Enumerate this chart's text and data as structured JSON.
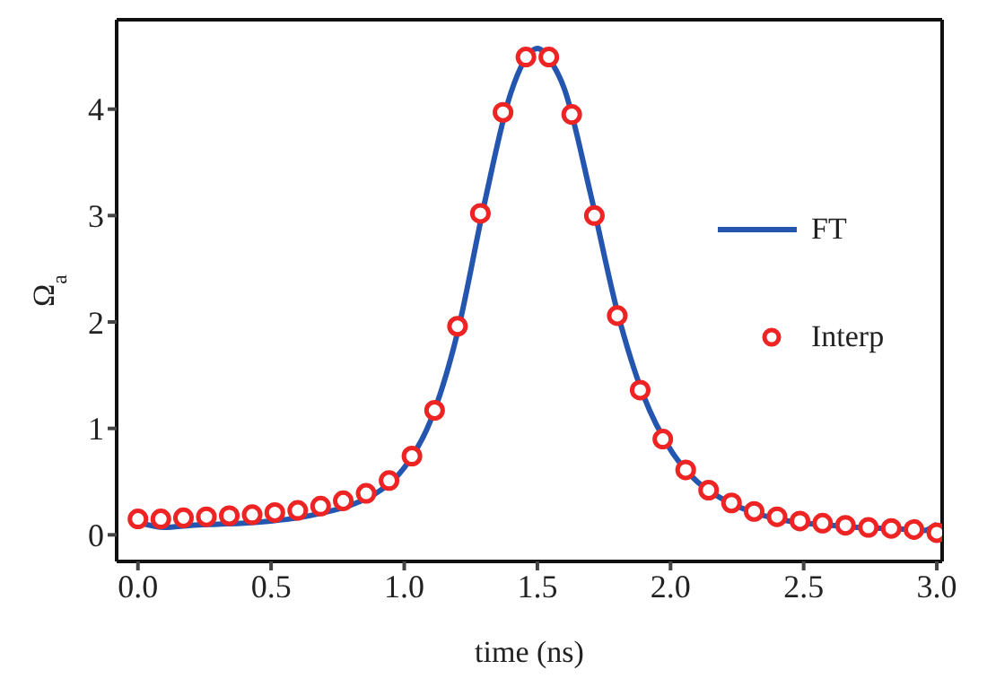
{
  "chart_data": {
    "type": "line",
    "xlabel": "time  (ns)",
    "ylabel": "Ω$_{a}$",
    "xlim": [
      -0.08,
      3.02
    ],
    "ylim": [
      -0.25,
      4.84
    ],
    "xticks": [
      {
        "value": 0,
        "label": "0.0"
      },
      {
        "value": 0.5,
        "label": "0.5"
      },
      {
        "value": 1,
        "label": "1.0"
      },
      {
        "value": 1.5,
        "label": "1.5"
      },
      {
        "value": 2,
        "label": "2.0"
      },
      {
        "value": 2.5,
        "label": "2.5"
      },
      {
        "value": 3,
        "label": "3.0"
      }
    ],
    "yticks": [
      0,
      1,
      2,
      3,
      4
    ],
    "grid": false,
    "legend": "right",
    "series": [
      {
        "name": "FT",
        "color": "#2456b0",
        "marker": "none",
        "line_style": "solid",
        "x": [
          0,
          0.1,
          0.2,
          0.3,
          0.4,
          0.5,
          0.6,
          0.7,
          0.8,
          0.9,
          1.0,
          1.1,
          1.2,
          1.3,
          1.4,
          1.45,
          1.5,
          1.55,
          1.6,
          1.7,
          1.8,
          1.9,
          2.0,
          2.1,
          2.2,
          2.3,
          2.4,
          2.5,
          2.6,
          2.7,
          2.8,
          2.9,
          2.95,
          3.0
        ],
        "values": [
          0.12,
          0.07,
          0.09,
          0.1,
          0.11,
          0.13,
          0.16,
          0.21,
          0.28,
          0.4,
          0.63,
          1.08,
          1.9,
          3.1,
          4.15,
          4.45,
          4.57,
          4.45,
          4.2,
          3.2,
          2.1,
          1.3,
          0.8,
          0.5,
          0.33,
          0.22,
          0.15,
          0.11,
          0.09,
          0.07,
          0.06,
          0.05,
          0.04,
          0.1
        ]
      },
      {
        "name": "Interp",
        "type": "scatter",
        "color": "#ee2424",
        "marker": "circle",
        "x": [
          0,
          0.086,
          0.171,
          0.257,
          0.343,
          0.429,
          0.514,
          0.6,
          0.686,
          0.771,
          0.857,
          0.943,
          1.029,
          1.114,
          1.2,
          1.286,
          1.371,
          1.457,
          1.543,
          1.629,
          1.714,
          1.8,
          1.886,
          1.971,
          2.057,
          2.143,
          2.229,
          2.314,
          2.4,
          2.486,
          2.571,
          2.657,
          2.743,
          2.829,
          2.914,
          3.0
        ],
        "values": [
          0.15,
          0.15,
          0.16,
          0.17,
          0.18,
          0.19,
          0.21,
          0.23,
          0.27,
          0.32,
          0.39,
          0.51,
          0.74,
          1.17,
          1.96,
          3.02,
          3.97,
          4.49,
          4.49,
          3.95,
          3.0,
          2.06,
          1.36,
          0.9,
          0.61,
          0.42,
          0.3,
          0.22,
          0.17,
          0.13,
          0.11,
          0.09,
          0.07,
          0.06,
          0.05,
          0.02
        ]
      }
    ]
  }
}
